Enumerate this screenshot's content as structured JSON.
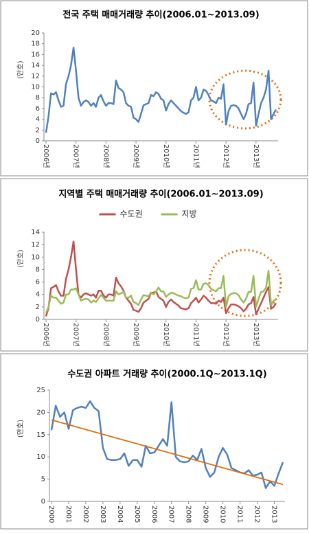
{
  "chart_data": [
    {
      "type": "line",
      "title": "전국 주택 매매거래량 추이(2006.01~2013.09)",
      "y_label": "(만호)",
      "categories": [
        "2006년",
        null,
        null,
        null,
        null,
        null,
        null,
        null,
        null,
        null,
        null,
        null,
        "2007년",
        null,
        null,
        null,
        null,
        null,
        null,
        null,
        null,
        null,
        null,
        null,
        "2008년",
        null,
        null,
        null,
        null,
        null,
        null,
        null,
        null,
        null,
        null,
        null,
        "2009년",
        null,
        null,
        null,
        null,
        null,
        null,
        null,
        null,
        null,
        null,
        null,
        "2010년",
        null,
        null,
        null,
        null,
        null,
        null,
        null,
        null,
        null,
        null,
        null,
        "2011년",
        null,
        null,
        null,
        null,
        null,
        null,
        null,
        null,
        null,
        null,
        null,
        "2012년",
        null,
        null,
        null,
        null,
        null,
        null,
        null,
        null,
        null,
        null,
        null,
        "2013년",
        null,
        null,
        null,
        null,
        null,
        null,
        null,
        null
      ],
      "series": [
        {
          "color": "#4f81bd",
          "values": [
            1.5,
            4.5,
            8.8,
            8.6,
            9,
            7.5,
            6.3,
            6.5,
            10.5,
            12,
            14,
            17.3,
            13,
            8,
            6.5,
            7.2,
            7.5,
            7.2,
            6.5,
            7,
            6.3,
            8,
            8.5,
            7.3,
            6.5,
            7,
            7,
            6.8,
            11.2,
            9.8,
            9.5,
            9,
            7,
            6.5,
            6.3,
            4.3,
            4,
            3.5,
            5,
            6.6,
            6.8,
            7,
            8.5,
            8.3,
            9,
            8.7,
            7.8,
            7.5,
            5.6,
            6.8,
            7.5,
            7,
            6.5,
            6,
            5.5,
            5.2,
            5,
            5.3,
            7.5,
            8,
            10,
            7.5,
            8,
            9.5,
            9.3,
            8.5,
            7.5,
            7.3,
            7,
            8,
            7.8,
            10.5,
            3,
            5.5,
            6.5,
            6.6,
            6.5,
            6,
            5,
            4,
            5,
            6.8,
            7,
            10.8,
            2.8,
            5,
            7,
            8,
            9.5,
            13,
            4,
            5,
            5.8
          ]
        }
      ],
      "ylim": [
        0,
        20
      ],
      "yticks": [
        0,
        2,
        4,
        6,
        8,
        10,
        12,
        14,
        16,
        18,
        20
      ],
      "grid": false
    },
    {
      "type": "line",
      "title": "지역별 주택 매매거래량 추이(2006.01~2013.09)",
      "y_label": "(만호)",
      "legend": "top",
      "categories": [
        "2006년",
        null,
        null,
        null,
        null,
        null,
        null,
        null,
        null,
        null,
        null,
        null,
        "2007년",
        null,
        null,
        null,
        null,
        null,
        null,
        null,
        null,
        null,
        null,
        null,
        "2008년",
        null,
        null,
        null,
        null,
        null,
        null,
        null,
        null,
        null,
        null,
        null,
        "2009년",
        null,
        null,
        null,
        null,
        null,
        null,
        null,
        null,
        null,
        null,
        null,
        "2010년",
        null,
        null,
        null,
        null,
        null,
        null,
        null,
        null,
        null,
        null,
        null,
        "2011년",
        null,
        null,
        null,
        null,
        null,
        null,
        null,
        null,
        null,
        null,
        null,
        "2012년",
        null,
        null,
        null,
        null,
        null,
        null,
        null,
        null,
        null,
        null,
        null,
        "2013년",
        null,
        null,
        null,
        null,
        null,
        null,
        null,
        null
      ],
      "series": [
        {
          "name": "수도권",
          "color": "#c0504d",
          "values": [
            0.5,
            1.8,
            5,
            5.2,
            5.5,
            4.5,
            3.8,
            3.8,
            6.5,
            8,
            10,
            12.5,
            8,
            4,
            3.5,
            4,
            4.2,
            4,
            3.8,
            4,
            3.5,
            4.6,
            4.6,
            3.8,
            3.5,
            4,
            4,
            3.8,
            6.7,
            5.8,
            5.3,
            4.6,
            3.5,
            3,
            2.5,
            1.5,
            1.4,
            1.2,
            1.8,
            2.7,
            3,
            3.3,
            4.2,
            4.3,
            4.5,
            3.6,
            3.3,
            3,
            2,
            2.8,
            3.2,
            2.8,
            2.5,
            2.2,
            1.8,
            1.7,
            1.6,
            1.8,
            2.6,
            3,
            3.5,
            2.7,
            3.2,
            3.8,
            3.5,
            3,
            2.6,
            2.6,
            2.5,
            3,
            2.8,
            3.5,
            1,
            1.8,
            2.4,
            2.4,
            2.3,
            2.1,
            1.8,
            1.3,
            1.7,
            2.4,
            2.6,
            3.6,
            0.8,
            1.7,
            2.6,
            3.5,
            4.4,
            5.2,
            1.7,
            2,
            2.6
          ]
        },
        {
          "name": "지방",
          "color": "#9bbb59",
          "values": [
            1,
            2,
            3.8,
            3.5,
            3.5,
            3,
            2.5,
            2.7,
            4,
            4,
            4.8,
            4.8,
            5,
            4,
            3,
            3.2,
            3.3,
            3.2,
            2.7,
            3,
            2.8,
            3.4,
            3.9,
            3.5,
            3,
            3,
            3,
            3,
            4.5,
            4,
            4.2,
            4.4,
            3.5,
            3.5,
            3.8,
            2.8,
            2.6,
            2.3,
            3.2,
            3.9,
            3.8,
            3.7,
            4.3,
            4,
            4.5,
            5.1,
            4.5,
            4.5,
            3.6,
            4,
            4.3,
            4.2,
            4,
            3.8,
            3.7,
            3.5,
            3.4,
            3.5,
            4.9,
            5,
            6.3,
            4.8,
            4.8,
            5.7,
            5.8,
            5.5,
            4.9,
            4.7,
            4.5,
            5,
            5,
            7,
            2,
            3.7,
            4.1,
            4.2,
            4.2,
            3.9,
            3.2,
            2.7,
            3.3,
            4.4,
            4.4,
            7,
            2,
            3.3,
            4.4,
            4.5,
            5.1,
            7.8,
            2.3,
            3,
            3.2
          ]
        }
      ],
      "ylim": [
        0,
        14
      ],
      "yticks": [
        0,
        2,
        4,
        6,
        8,
        10,
        12,
        14
      ],
      "grid": false
    },
    {
      "type": "line",
      "title": "수도권 아파트 거래량 추이(2000.1Q~2013.1Q)",
      "y_label": "(만호)",
      "categories": [
        "2000",
        null,
        null,
        null,
        "2001",
        null,
        null,
        null,
        "2002",
        null,
        null,
        null,
        "2003",
        null,
        null,
        null,
        "2004",
        null,
        null,
        null,
        "2005",
        null,
        null,
        null,
        "2006",
        null,
        null,
        null,
        "2007",
        null,
        null,
        null,
        "2008",
        null,
        null,
        null,
        "2009",
        null,
        null,
        null,
        "2010",
        null,
        null,
        null,
        "2011",
        null,
        null,
        null,
        "2012",
        null,
        null,
        null,
        "2013",
        null,
        null
      ],
      "series": [
        {
          "color": "#4f81bd",
          "values": [
            16,
            21.5,
            19,
            20,
            16.3,
            20.5,
            21,
            21.3,
            21,
            22.5,
            21,
            20.3,
            12,
            9.5,
            9.3,
            9.3,
            9.5,
            10.8,
            8,
            9.3,
            9.3,
            7.8,
            12.5,
            10.8,
            11,
            12.5,
            14,
            12.5,
            22.3,
            10,
            9,
            8.8,
            9,
            10.3,
            9.3,
            11.8,
            7.5,
            5.5,
            6.5,
            10,
            12,
            10.5,
            7.5,
            7,
            6.5,
            6.3,
            7,
            5.8,
            6,
            6.5,
            3,
            4.5,
            3.5,
            6.3,
            8.8
          ]
        }
      ],
      "trend": {
        "color": "#e46c0a",
        "start": 18.3,
        "end": 3.8
      },
      "ylim": [
        0,
        25
      ],
      "yticks": [
        0,
        5,
        10,
        15,
        20,
        25
      ],
      "grid": false
    }
  ]
}
